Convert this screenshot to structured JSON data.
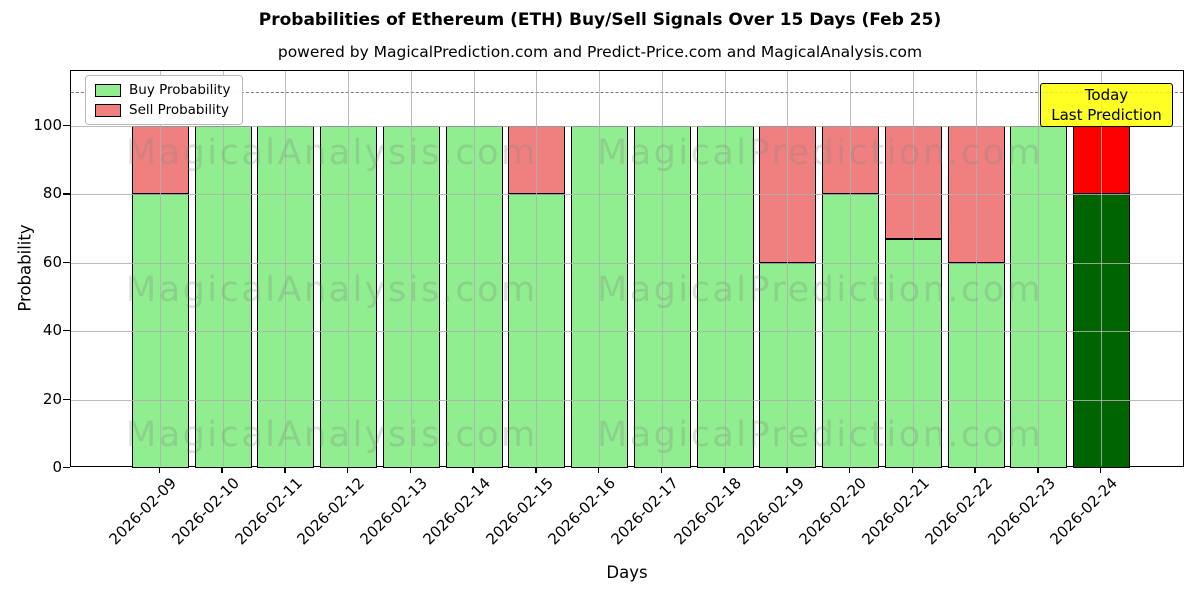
{
  "watermarks": {
    "left": "MagicalAnalysis.com",
    "right": "MagicalPrediction.com"
  },
  "annotation": {
    "line1": "Today",
    "line2": "Last Prediction",
    "bg_color": "#ffff00",
    "border_color": "#000000"
  },
  "chart_data": {
    "type": "bar",
    "stacked": true,
    "title": "Probabilities of Ethereum (ETH) Buy/Sell Signals Over 15 Days (Feb 25)",
    "subtitle": "powered by MagicalPrediction.com and Predict-Price.com and MagicalAnalysis.com",
    "categories": [
      "2026-02-09",
      "2026-02-10",
      "2026-02-11",
      "2026-02-12",
      "2026-02-13",
      "2026-02-14",
      "2026-02-15",
      "2026-02-16",
      "2026-02-17",
      "2026-02-18",
      "2026-02-19",
      "2026-02-20",
      "2026-02-21",
      "2026-02-22",
      "2026-02-23",
      "2026-02-24"
    ],
    "series": [
      {
        "name": "Buy Probability",
        "color": "#90ee90",
        "today_color": "#006400",
        "values": [
          80,
          100,
          100,
          100,
          100,
          100,
          80,
          100,
          100,
          100,
          60,
          80,
          67,
          60,
          100,
          80
        ]
      },
      {
        "name": "Sell Probability",
        "color": "#f08080",
        "today_color": "#ff0000",
        "values": [
          20,
          0,
          0,
          0,
          0,
          0,
          20,
          0,
          0,
          0,
          40,
          20,
          33,
          40,
          0,
          20
        ]
      }
    ],
    "today_index": 15,
    "xlabel": "Days",
    "ylabel": "Probability",
    "yticks": [
      0,
      20,
      40,
      60,
      80,
      100
    ],
    "ylim": [
      0,
      116
    ],
    "dashed_line_y": 110,
    "grid": true,
    "grid_color": "#b0b0b0",
    "bar_edge_color": "#000000",
    "legend_position": "upper left"
  }
}
